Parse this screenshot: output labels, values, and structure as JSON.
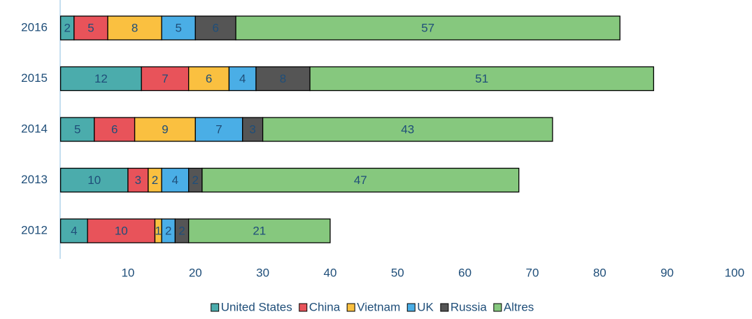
{
  "chart_data": {
    "type": "stacked-bar-horizontal",
    "categories": [
      "2012",
      "2013",
      "2014",
      "2015",
      "2016"
    ],
    "series": [
      {
        "name": "United States",
        "color": "#4bacac",
        "values": [
          4,
          10,
          5,
          12,
          2
        ]
      },
      {
        "name": "China",
        "color": "#e8535a",
        "values": [
          10,
          3,
          6,
          7,
          5
        ]
      },
      {
        "name": "Vietnam",
        "color": "#fac040",
        "values": [
          1,
          2,
          9,
          6,
          8
        ]
      },
      {
        "name": "UK",
        "color": "#4aaee6",
        "values": [
          2,
          4,
          7,
          4,
          5
        ]
      },
      {
        "name": "Russia",
        "color": "#555555",
        "values": [
          2,
          2,
          3,
          8,
          6
        ]
      },
      {
        "name": "Altres",
        "color": "#86c87e",
        "values": [
          21,
          47,
          43,
          51,
          57
        ]
      }
    ],
    "xlim": [
      0,
      100
    ],
    "xticks": [
      10,
      20,
      30,
      40,
      50,
      60,
      70,
      80,
      90,
      100
    ],
    "legend": "bottom"
  }
}
